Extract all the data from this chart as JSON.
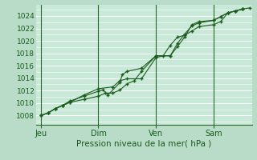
{
  "title": "Pression niveau de la mer( hPa )",
  "bg_color": "#b8dcc8",
  "plot_bg_color": "#c8e8d8",
  "grid_color": "#ffffff",
  "line_color": "#1a5c1a",
  "marker_color": "#1a5c1a",
  "ylim": [
    1006.5,
    1025.8
  ],
  "yticks": [
    1008,
    1010,
    1012,
    1014,
    1016,
    1018,
    1020,
    1022,
    1024
  ],
  "xtick_labels": [
    "Jeu",
    "Dim",
    "Ven",
    "Sam"
  ],
  "xtick_positions": [
    0,
    24,
    48,
    72
  ],
  "xlim": [
    -2,
    88
  ],
  "series1_x": [
    0,
    3,
    6,
    9,
    12,
    18,
    24,
    27,
    30,
    33,
    36,
    39,
    42,
    48,
    54,
    57,
    60,
    63,
    66,
    72,
    75,
    78,
    81,
    84
  ],
  "series1_y": [
    1008.0,
    1008.4,
    1009.1,
    1009.6,
    1010.1,
    1010.6,
    1011.1,
    1011.6,
    1011.6,
    1012.1,
    1013.1,
    1013.6,
    1015.1,
    1017.6,
    1017.6,
    1019.6,
    1021.1,
    1022.4,
    1022.9,
    1023.3,
    1023.9,
    1024.5,
    1024.8,
    1025.1
  ],
  "series2_x": [
    0,
    3,
    6,
    9,
    12,
    18,
    24,
    26,
    28,
    33,
    34,
    36,
    42,
    48,
    54,
    57,
    60,
    63,
    66,
    72,
    75,
    78,
    81,
    84,
    87
  ],
  "series2_y": [
    1008.0,
    1008.4,
    1009.1,
    1009.6,
    1010.3,
    1011.1,
    1011.9,
    1012.1,
    1011.3,
    1013.3,
    1014.6,
    1015.1,
    1015.6,
    1017.6,
    1017.6,
    1019.1,
    1020.6,
    1022.6,
    1023.1,
    1023.3,
    1023.9,
    1024.5,
    1024.8,
    1025.1,
    1025.3
  ],
  "series3_x": [
    0,
    3,
    6,
    9,
    12,
    18,
    24,
    30,
    33,
    36,
    42,
    48,
    51,
    54,
    57,
    60,
    63,
    66,
    72,
    75,
    78,
    81,
    84
  ],
  "series3_y": [
    1008.0,
    1008.4,
    1009.1,
    1009.6,
    1010.1,
    1011.3,
    1012.3,
    1012.6,
    1013.6,
    1013.9,
    1013.9,
    1017.3,
    1017.6,
    1019.3,
    1020.6,
    1020.9,
    1021.6,
    1022.3,
    1022.6,
    1023.1,
    1024.5,
    1024.8,
    1025.1
  ],
  "vline_positions": [
    0,
    24,
    48,
    72
  ],
  "vline_color": "#2a6b2a"
}
